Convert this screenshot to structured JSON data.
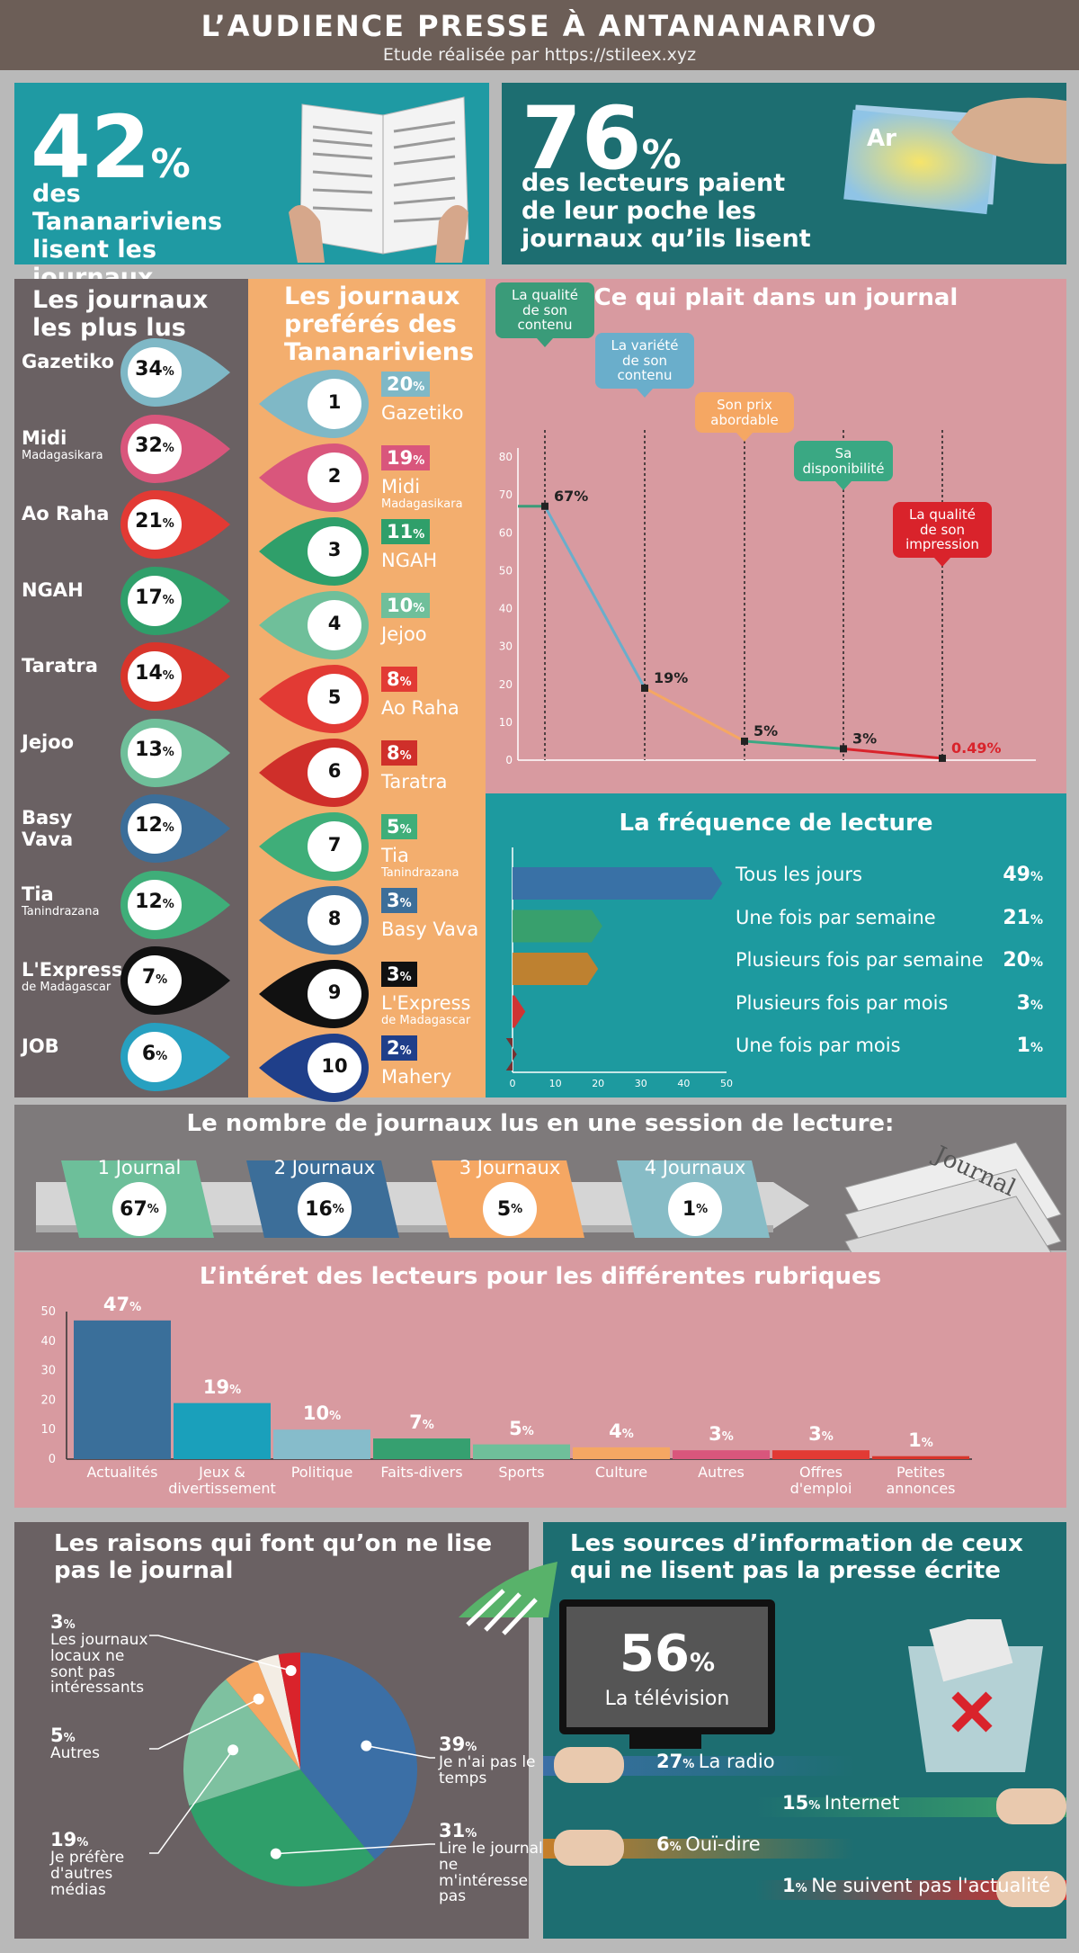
{
  "header": {
    "title": "L’AUDIENCE PRESSE À ANTANANARIVO",
    "subtitle": "Etude réalisée par https://stileex.xyz"
  },
  "stat1": {
    "value": "42",
    "unit": "%",
    "text": "des Tananariviens lisent les journaux"
  },
  "stat2": {
    "value": "76",
    "unit": "%",
    "text": "des lecteurs paient de leur poche les journaux qu’ils lisent",
    "note": "Ar"
  },
  "most_read": {
    "title": "Les journaux les plus lus",
    "items": [
      {
        "name": "Gazetiko",
        "sub": "",
        "value": "34",
        "color": "#7fb8c6"
      },
      {
        "name": "Midi",
        "sub": "Madagasikara",
        "value": "32",
        "color": "#d9567c"
      },
      {
        "name": "Ao Raha",
        "sub": "",
        "value": "21",
        "color": "#e23a34"
      },
      {
        "name": "NGAH",
        "sub": "",
        "value": "17",
        "color": "#2f9f6a"
      },
      {
        "name": "Taratra",
        "sub": "",
        "value": "14",
        "color": "#d8352b"
      },
      {
        "name": "Jejoo",
        "sub": "",
        "value": "13",
        "color": "#6fbf9a"
      },
      {
        "name": "Basy Vava",
        "sub": "",
        "value": "12",
        "color": "#3c6e99"
      },
      {
        "name": "Tia",
        "sub": "Tanindrazana",
        "value": "12",
        "color": "#3fae79"
      },
      {
        "name": "L'Express",
        "sub": "de Madagascar",
        "value": "7",
        "color": "#111111"
      },
      {
        "name": "JOB",
        "sub": "",
        "value": "6",
        "color": "#27a0c0"
      }
    ]
  },
  "preferred": {
    "title": "Les journaux preférés des Tananariviens",
    "items": [
      {
        "rank": "1",
        "name": "Gazetiko",
        "sub": "",
        "value": "20",
        "color": "#7fb8c6"
      },
      {
        "rank": "2",
        "name": "Midi",
        "sub": "Madagasikara",
        "value": "19",
        "color": "#d9567c"
      },
      {
        "rank": "3",
        "name": "NGAH",
        "sub": "",
        "value": "11",
        "color": "#2f9f6a"
      },
      {
        "rank": "4",
        "name": "Jejoo",
        "sub": "",
        "value": "10",
        "color": "#6fbf9a"
      },
      {
        "rank": "5",
        "name": "Ao Raha",
        "sub": "",
        "value": "8",
        "color": "#e23a34"
      },
      {
        "rank": "6",
        "name": "Taratra",
        "sub": "",
        "value": "8",
        "color": "#cf2f2a"
      },
      {
        "rank": "7",
        "name": "Tia",
        "sub": "Tanindrazana",
        "value": "5",
        "color": "#3fae79"
      },
      {
        "rank": "8",
        "name": "Basy Vava",
        "sub": "",
        "value": "3",
        "color": "#3c6e99"
      },
      {
        "rank": "9",
        "name": "L'Express",
        "sub": "de Madagascar",
        "value": "3",
        "color": "#111111"
      },
      {
        "rank": "10",
        "name": "Mahery",
        "sub": "",
        "value": "2",
        "color": "#1f3f8a"
      }
    ]
  },
  "likes": {
    "title": "Ce qui plait dans un journal"
  },
  "frequency": {
    "title": "La fréquence de lecture"
  },
  "nb_journaux": {
    "title": "Le nombre de journaux lus en une session de lecture:",
    "items": [
      {
        "label": "1 Journal",
        "value": "67",
        "color": "#6dbf9a"
      },
      {
        "label": "2 Journaux",
        "value": "16",
        "color": "#3c6e99"
      },
      {
        "label": "3 Journaux",
        "value": "5",
        "color": "#f5a763"
      },
      {
        "label": "4 Journaux",
        "value": "1",
        "color": "#87bcc6"
      }
    ],
    "image_word": "Journal"
  },
  "rubriques": {
    "title": "L’intéret des lecteurs pour les différentes rubriques"
  },
  "raisons": {
    "title": "Les raisons qui font qu’on ne lise pas le journal"
  },
  "sources": {
    "title": "Les sources d’information de ceux qui ne lisent pas la presse écrite",
    "tv_value": "56",
    "tv_label": "La télévision",
    "rows": [
      {
        "value": "27",
        "label": "La radio",
        "color": "#3b6fa6"
      },
      {
        "value": "15",
        "label": "Internet",
        "color": "#3aa06a"
      },
      {
        "value": "6",
        "label": "Ouï-dire",
        "color": "#c77f2a"
      },
      {
        "value": "1",
        "label": "Ne suivent pas l'actualité",
        "color": "#d92e2e"
      }
    ]
  },
  "chart_data": [
    {
      "type": "line",
      "title": "Ce qui plait dans un journal",
      "categories": [
        "La qualité de son contenu",
        "La variété de son contenu",
        "Son prix abordable",
        "Sa disponibilité",
        "La qualité de son impression"
      ],
      "values": [
        67,
        19,
        5,
        3,
        0.49
      ],
      "labels": [
        "67%",
        "19%",
        "5%",
        "3%",
        "0.49%"
      ],
      "colors": [
        "#3a9b79",
        "#6aaecb",
        "#f5a763",
        "#3aa883",
        "#d9232b"
      ],
      "ylim": [
        0,
        80
      ],
      "yticks": [
        0,
        10,
        20,
        30,
        40,
        50,
        60,
        70,
        80
      ]
    },
    {
      "type": "bar",
      "orientation": "horizontal",
      "title": "La fréquence de lecture",
      "categories": [
        "Tous les jours",
        "Une fois par semaine",
        "Plusieurs fois par semaine",
        "Plusieurs fois par mois",
        "Une fois par mois"
      ],
      "values": [
        49,
        21,
        20,
        3,
        1
      ],
      "colors": [
        "#3b6fa6",
        "#3aa06a",
        "#c77f2a",
        "#d92e2e",
        "#7a2a2a"
      ],
      "xlim": [
        0,
        50
      ],
      "xticks": [
        0,
        10,
        20,
        30,
        40,
        50
      ]
    },
    {
      "type": "bar",
      "title": "L’intéret des lecteurs pour les différentes rubriques",
      "categories": [
        "Actualités",
        "Jeux & divertissement",
        "Politique",
        "Faits-divers",
        "Sports",
        "Culture",
        "Autres",
        "Offres d'emploi",
        "Petites annonces"
      ],
      "values": [
        47,
        19,
        10,
        7,
        5,
        4,
        3,
        3,
        1
      ],
      "colors": [
        "#3a6f9a",
        "#1aa0bb",
        "#86bccb",
        "#36a070",
        "#6fbf9a",
        "#f5a763",
        "#d9567c",
        "#e23a34",
        "#d8352b"
      ],
      "ylim": [
        0,
        50
      ],
      "yticks": [
        0,
        10,
        20,
        30,
        40,
        50
      ]
    },
    {
      "type": "pie",
      "title": "Les raisons qui font qu’on ne lise pas le journal",
      "categories": [
        "Je n'ai pas le temps",
        "Lire le journal ne m'intéresse pas",
        "Je préfère d'autres médias",
        "Autres",
        "Les journaux locaux ne sont pas intéressants",
        "Autre"
      ],
      "values": [
        39,
        31,
        19,
        5,
        3,
        3
      ],
      "colors": [
        "#3b6fa6",
        "#2f9f6a",
        "#7ec1a0",
        "#f5a763",
        "#f3ede4",
        "#d9232b"
      ]
    }
  ]
}
